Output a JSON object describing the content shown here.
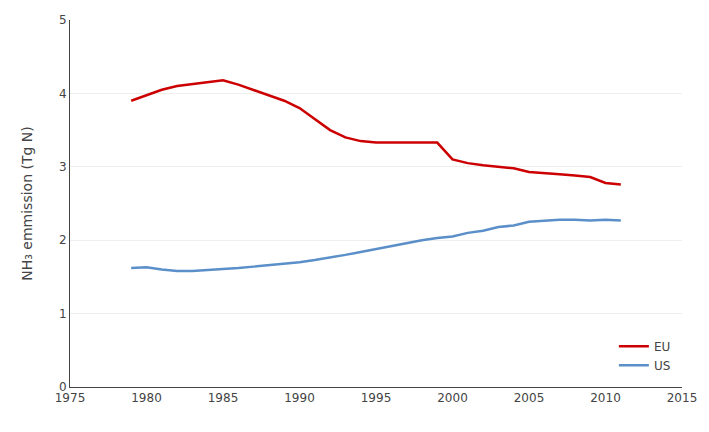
{
  "chart_data": {
    "type": "line",
    "y_label": "NH₃ emmission (Tg N)",
    "x": [
      1979,
      1980,
      1981,
      1982,
      1983,
      1984,
      1985,
      1986,
      1987,
      1988,
      1989,
      1990,
      1991,
      1992,
      1993,
      1994,
      1995,
      1996,
      1997,
      1998,
      1999,
      2000,
      2001,
      2002,
      2003,
      2004,
      2005,
      2006,
      2007,
      2008,
      2009,
      2010,
      2011
    ],
    "series": [
      {
        "name": "EU",
        "color": "#cc0000",
        "values": [
          3.9,
          3.97,
          4.05,
          4.1,
          4.13,
          4.15,
          4.18,
          4.12,
          4.05,
          3.98,
          3.9,
          3.8,
          3.65,
          3.5,
          3.4,
          3.35,
          3.33,
          3.33,
          3.32,
          3.32,
          3.33,
          3.1,
          3.05,
          3.02,
          3.0,
          2.98,
          2.93,
          2.92,
          2.9,
          2.88,
          2.86,
          2.78,
          2.76
        ]
      },
      {
        "name": "US",
        "color": "#5b8fc9",
        "values": [
          1.62,
          1.63,
          1.6,
          1.58,
          1.58,
          1.59,
          1.6,
          1.62,
          1.64,
          1.66,
          1.68,
          1.7,
          1.73,
          1.76,
          1.8,
          1.84,
          1.88,
          1.93,
          1.97,
          2.0,
          2.03,
          2.05,
          2.1,
          2.13,
          2.18,
          2.2,
          2.25,
          2.27,
          2.28,
          2.28,
          2.27,
          2.28,
          2.27
        ]
      }
    ],
    "xlim": [
      1975,
      2015
    ],
    "ylim": [
      0,
      5
    ],
    "xticks": [
      1975,
      1980,
      1985,
      1990,
      1995,
      2000,
      2005,
      2010,
      2015
    ],
    "yticks": [
      0,
      1,
      2,
      3,
      4,
      5
    ],
    "grid": true,
    "legend": "lower right"
  }
}
